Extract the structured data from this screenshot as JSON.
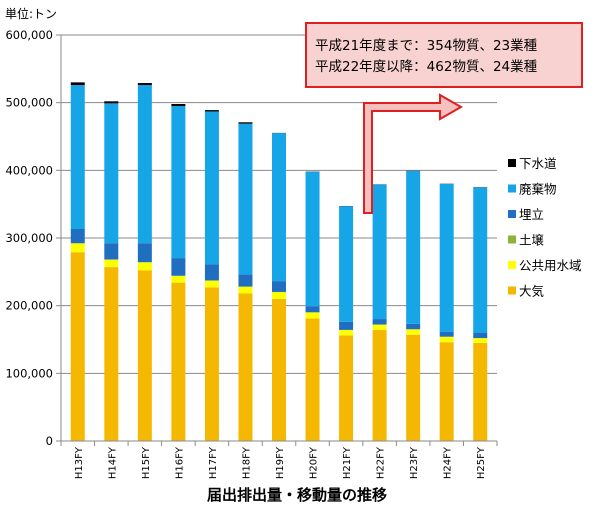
{
  "chart_data": {
    "type": "bar",
    "stacked": true,
    "title": "届出排出量・移動量の推移",
    "unit_label": "単位:トン",
    "categories": [
      "H13FY",
      "H14FY",
      "H15FY",
      "H16FY",
      "H17FY",
      "H18FY",
      "H19FY",
      "H20FY",
      "H21FY",
      "H22FY",
      "H23FY",
      "H24FY",
      "H25FY"
    ],
    "ylim": [
      0,
      600000
    ],
    "yticks": [
      0,
      100000,
      200000,
      300000,
      400000,
      500000,
      600000
    ],
    "ytick_labels": [
      "0",
      "100,000",
      "200,000",
      "300,000",
      "400,000",
      "500,000",
      "600,000"
    ],
    "grid": true,
    "legend_position": "right",
    "series": [
      {
        "name": "大気",
        "color": "#F5B800",
        "values": [
          279000,
          257000,
          252000,
          234000,
          227000,
          218000,
          210000,
          181000,
          156000,
          164000,
          157000,
          146000,
          145000
        ]
      },
      {
        "name": "公共用水域",
        "color": "#FFFF00",
        "values": [
          13000,
          11000,
          12000,
          10000,
          10000,
          10000,
          10000,
          9000,
          8000,
          8000,
          8000,
          8000,
          7000
        ]
      },
      {
        "name": "土壌",
        "color": "#8DB33A",
        "values": [
          300,
          300,
          300,
          300,
          300,
          300,
          300,
          200,
          200,
          200,
          200,
          200,
          200
        ]
      },
      {
        "name": "埋立",
        "color": "#1F6EBF",
        "values": [
          21000,
          24000,
          28000,
          26000,
          24000,
          18000,
          16000,
          9000,
          12000,
          8000,
          8000,
          7000,
          8000
        ]
      },
      {
        "name": "廃棄物",
        "color": "#16A5E6",
        "values": [
          212700,
          206700,
          233700,
          224700,
          225700,
          222700,
          218700,
          198800,
          170800,
          198800,
          225800,
          218800,
          214800
        ]
      },
      {
        "name": "下水道",
        "color": "#000000",
        "values": [
          4000,
          3000,
          3000,
          3000,
          2000,
          2000,
          300,
          300,
          300,
          300,
          300,
          300,
          300
        ]
      }
    ],
    "annotation": {
      "lines": [
        "平成21年度まで：354物質、23業種",
        "平成22年度以降：462物質、24業種"
      ]
    }
  }
}
